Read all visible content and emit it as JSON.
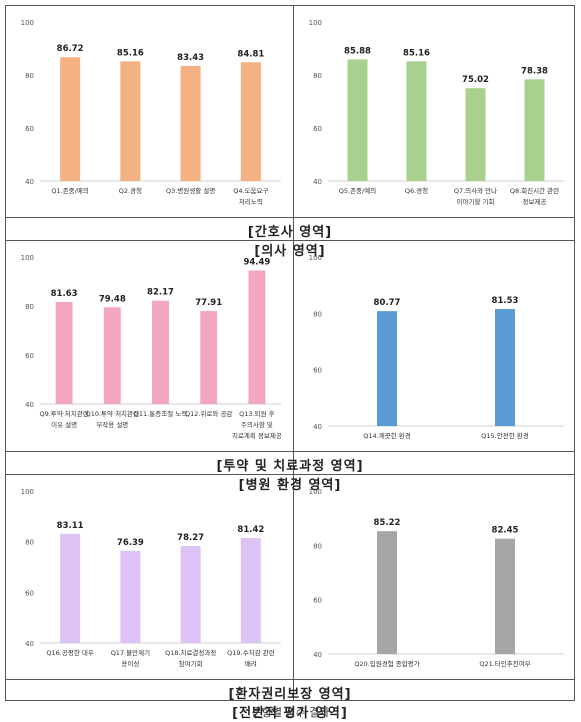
{
  "footer_caption": "문항별 점수 결과",
  "panels": [
    {
      "caption": "[간호사 영역]",
      "chart_data": {
        "type": "bar",
        "color": "#f4b183",
        "ylim": [
          40,
          100
        ],
        "yticks": [
          40,
          60,
          80,
          100
        ],
        "categories": [
          [
            "Q1.존중/예의"
          ],
          [
            "Q2.경청"
          ],
          [
            "Q3.병원생활 설명"
          ],
          [
            "Q4.도움요구",
            "처리노력"
          ]
        ],
        "values": [
          86.72,
          85.16,
          83.43,
          84.81
        ],
        "value_labels": [
          "86.72",
          "85.16",
          "83.43",
          "84.81"
        ]
      }
    },
    {
      "caption": "[의사 영역]",
      "chart_data": {
        "type": "bar",
        "color": "#a9d18e",
        "ylim": [
          40,
          100
        ],
        "yticks": [
          40,
          60,
          80,
          100
        ],
        "categories": [
          [
            "Q5.존중/예의"
          ],
          [
            "Q6.경청"
          ],
          [
            "Q7.의사와 만나",
            "이야기할 기회"
          ],
          [
            "Q8.회진시간 관련",
            "정보제공"
          ]
        ],
        "values": [
          85.88,
          85.16,
          75.02,
          78.38
        ],
        "value_labels": [
          "85.88",
          "85.16",
          "75.02",
          "78.38"
        ]
      }
    },
    {
      "caption": "[투약 및 치료과정 영역]",
      "chart_data": {
        "type": "bar",
        "color": "#f4a6c0",
        "ylim": [
          40,
          100
        ],
        "yticks": [
          40,
          60,
          80,
          100
        ],
        "categories": [
          [
            "Q9.투약·처치관련",
            "이유 설명"
          ],
          [
            "Q10.투약·처치관련",
            "부작용 설명"
          ],
          [
            "Q11.통증조절 노력"
          ],
          [
            "Q12.위로와 공감"
          ],
          [
            "Q13.퇴원 후",
            "주의사항 및",
            "치료계획 정보제공"
          ]
        ],
        "values": [
          81.63,
          79.48,
          82.17,
          77.91,
          94.49
        ],
        "value_labels": [
          "81.63",
          "79.48",
          "82.17",
          "77.91",
          "94.49"
        ]
      }
    },
    {
      "caption": "[병원 환경 영역]",
      "chart_data": {
        "type": "bar",
        "color": "#5b9bd5",
        "ylim": [
          40,
          100
        ],
        "yticks": [
          40,
          60,
          80,
          100
        ],
        "categories": [
          [
            "Q14.깨끗한 환경"
          ],
          [
            "Q15.안전한 환경"
          ]
        ],
        "values": [
          80.77,
          81.53
        ],
        "value_labels": [
          "80.77",
          "81.53"
        ]
      }
    },
    {
      "caption": "[환자권리보장 영역]",
      "chart_data": {
        "type": "bar",
        "color": "#dcc2f5",
        "ylim": [
          40,
          100
        ],
        "yticks": [
          40,
          60,
          80,
          100
        ],
        "categories": [
          [
            "Q16.공평한 대우"
          ],
          [
            "Q17.불만제기",
            "용이성"
          ],
          [
            "Q18.치료결정과정",
            "참여기회"
          ],
          [
            "Q19.수치감 관련",
            "배려"
          ]
        ],
        "values": [
          83.11,
          76.39,
          78.27,
          81.42
        ],
        "value_labels": [
          "83.11",
          "76.39",
          "78.27",
          "81.42"
        ]
      }
    },
    {
      "caption": "[전반적 평가 영역]",
      "chart_data": {
        "type": "bar",
        "color": "#a6a6a6",
        "ylim": [
          40,
          100
        ],
        "yticks": [
          40,
          60,
          80,
          100
        ],
        "categories": [
          [
            "Q20.입원경험 종합평가"
          ],
          [
            "Q21.타인추천여부"
          ]
        ],
        "values": [
          85.22,
          82.45
        ],
        "value_labels": [
          "85.22",
          "82.45"
        ]
      }
    }
  ]
}
